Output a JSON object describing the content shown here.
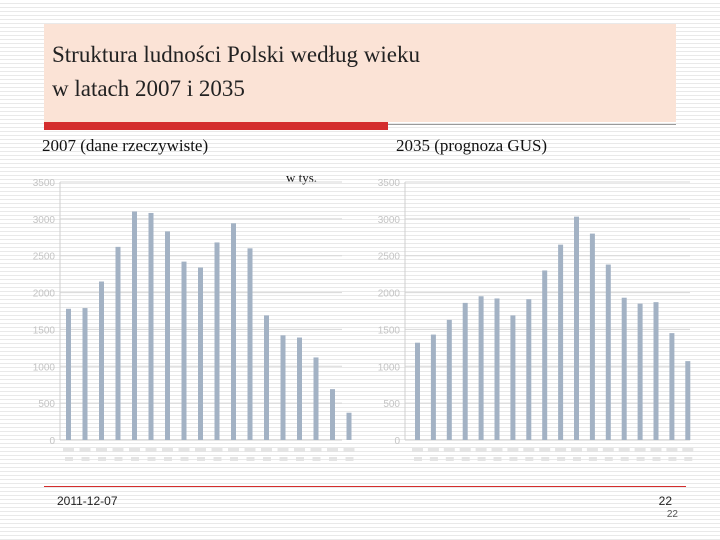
{
  "slide": {
    "title_line1": "Struktura ludności Polski według wieku",
    "title_line2": "w latach 2007 i 2035",
    "unit_label": "w tys.",
    "footer_date": "2011-12-07",
    "page_number": "22",
    "page_number_small": "22"
  },
  "colors": {
    "bar": "#a3b2c4",
    "title_bg": "#fbe3d6",
    "accent": "#d42d2d"
  },
  "chart_data": [
    {
      "type": "bar",
      "title": "2007 (dane rzeczywiste)",
      "ylim": [
        0,
        3500
      ],
      "yticks": [
        0,
        500,
        1000,
        1500,
        2000,
        2500,
        3000,
        3500
      ],
      "ylabel": "w tys.",
      "values": [
        1780,
        1790,
        2150,
        2620,
        3100,
        3080,
        2830,
        2420,
        2340,
        2680,
        2940,
        2600,
        1690,
        1420,
        1390,
        1120,
        690,
        370
      ]
    },
    {
      "type": "bar",
      "title": "2035 (prognoza GUS)",
      "ylim": [
        0,
        3500
      ],
      "yticks": [
        0,
        500,
        1000,
        1500,
        2000,
        2500,
        3000,
        3500
      ],
      "values": [
        1320,
        1430,
        1630,
        1860,
        1950,
        1920,
        1690,
        1910,
        2300,
        2650,
        3030,
        2800,
        2380,
        1930,
        1850,
        1870,
        1450,
        1070
      ]
    }
  ]
}
